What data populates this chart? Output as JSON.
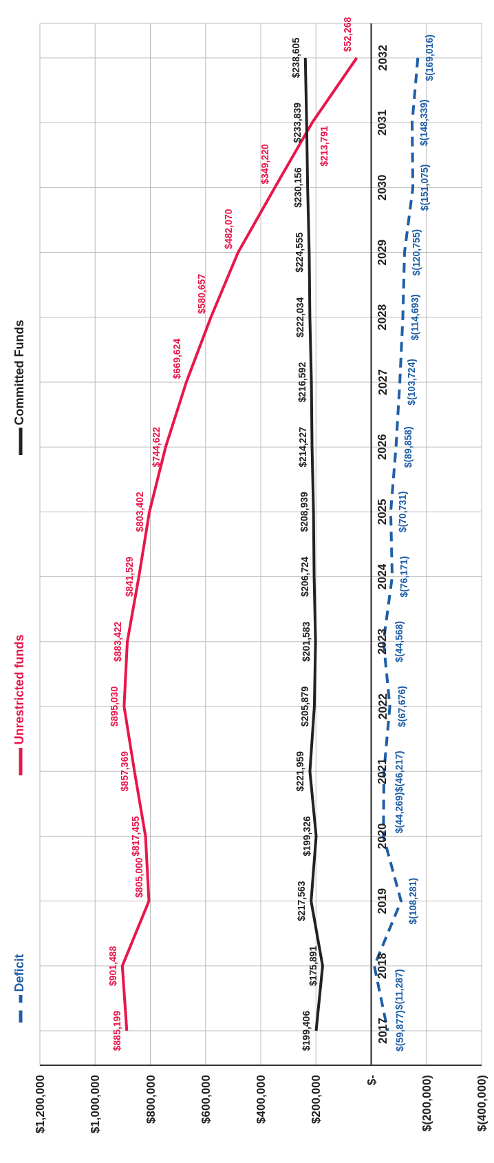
{
  "chart_data": {
    "type": "line",
    "orientation": "horizontal",
    "categories": [
      "2032",
      "2031",
      "2030",
      "2029",
      "2028",
      "2027",
      "2026",
      "2025",
      "2024",
      "2023",
      "2022",
      "2021",
      "2020",
      "2019",
      "2018",
      "2017"
    ],
    "series": [
      {
        "name": "Deficit",
        "color": "#1f5fa8",
        "line_style": "dashed",
        "values": [
          -169016,
          -148339,
          -151075,
          -120755,
          -114693,
          -103724,
          -89858,
          -70731,
          -76171,
          -44568,
          -67676,
          -46217,
          -44269,
          -108281,
          -11287,
          -59877
        ],
        "value_labels": [
          "$(169,016)",
          "$(148,339)",
          "$(151,075)",
          "$(120,755)",
          "$(114,693)",
          "$(103,724)",
          "$(89,858)",
          "$(70,731)",
          "$(76,171)",
          "$(44,568)",
          "$(67,676)",
          "$(46,217)",
          "$(44,269)",
          "$(108,281)",
          "$(11,287)",
          "$(59,877)"
        ]
      },
      {
        "name": "Unrestricted funds",
        "color": "#e8174a",
        "line_style": "solid",
        "values": [
          52268,
          213791,
          349220,
          482070,
          580657,
          669624,
          744622,
          803402,
          841529,
          883422,
          895030,
          857369,
          817455,
          805000,
          901488,
          885199
        ],
        "value_labels": [
          "$52,268",
          "$213,791",
          "$349,220",
          "$482,070",
          "$580,657",
          "$669,624",
          "$744,622",
          "$803,402",
          "$841,529",
          "$883,422",
          "$895,030",
          "$857,369",
          "$817,455",
          "$805,000",
          "$901,488",
          "$885,199"
        ]
      },
      {
        "name": "Committed Funds",
        "color": "#222222",
        "line_style": "solid",
        "values": [
          238605,
          233839,
          230156,
          224555,
          222034,
          216592,
          214227,
          208939,
          206724,
          201583,
          205879,
          221959,
          199326,
          217563,
          175891,
          199406
        ],
        "value_labels": [
          "$238,605",
          "$233,839",
          "$230,156",
          "$224,555",
          "$222,034",
          "$216,592",
          "$214,227",
          "$208,939",
          "$206,724",
          "$201,583",
          "$205,879",
          "$221,959",
          "$199,326",
          "$217,563",
          "$175,891",
          "$199,406"
        ]
      }
    ],
    "xlim": [
      1200000,
      -400000
    ],
    "xticks": [
      {
        "value": 1200000,
        "label": "$1,200,000"
      },
      {
        "value": 1000000,
        "label": "$1,000,000"
      },
      {
        "value": 800000,
        "label": "$800,000"
      },
      {
        "value": 600000,
        "label": "$600,000"
      },
      {
        "value": 400000,
        "label": "$400,000"
      },
      {
        "value": 200000,
        "label": "$200,000"
      },
      {
        "value": 0,
        "label": "$-"
      },
      {
        "value": -200000,
        "label": "$(200,000)"
      },
      {
        "value": -400000,
        "label": "$(400,000)"
      }
    ],
    "grid": true,
    "legend": "left",
    "marker": "none"
  }
}
